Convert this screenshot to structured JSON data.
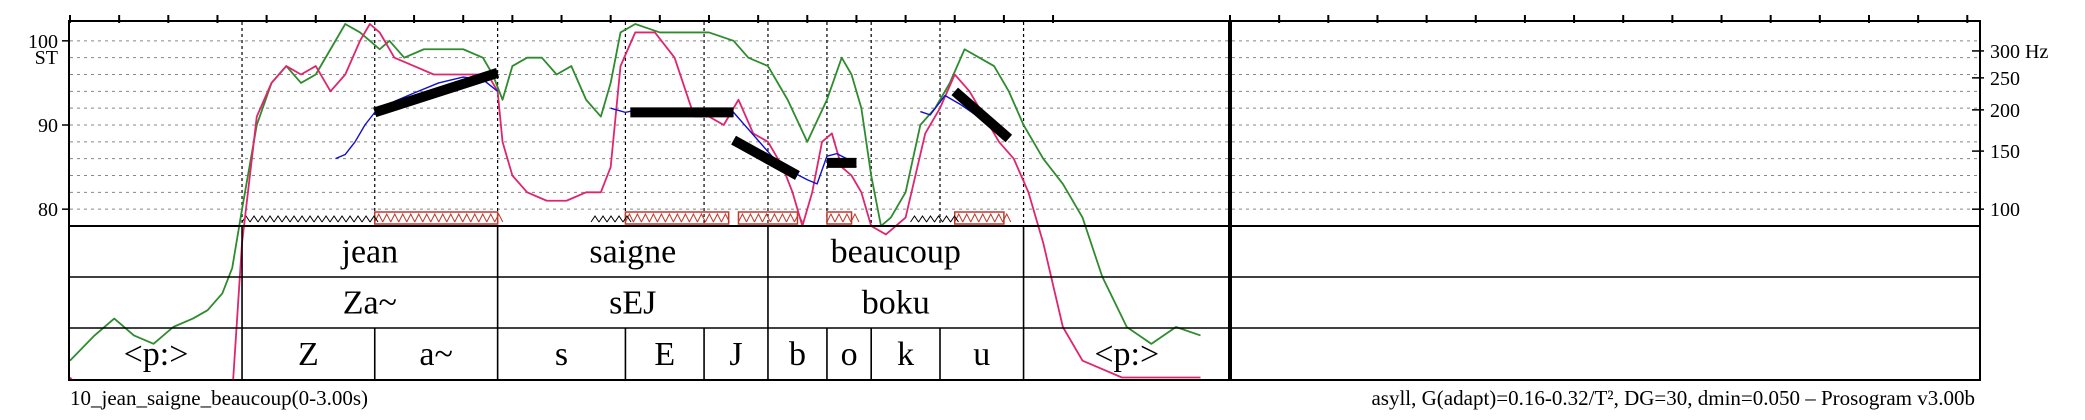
{
  "footer": {
    "filename": "10_jean_saigne_beaucoup(0-3.00s)",
    "settings": "asyll, G(adapt)=0.16-0.32/T², DG=30, dmin=0.050 – Prosogram v3.00b"
  },
  "colors": {
    "intensity": "#2e8b2e",
    "pitch_raw": "#e0256f",
    "pitch_contour": "#1010cc",
    "stylization": "#000000",
    "nucleus": "#c0392b",
    "grid": "#888888"
  },
  "chart_data": {
    "type": "line",
    "title": "",
    "xlim": [
      0,
      3.0
    ],
    "y_left": {
      "label": "ST",
      "ticks": [
        "100",
        "90",
        "80"
      ],
      "values": [
        100,
        90,
        80
      ]
    },
    "y_right": {
      "label": "Hz",
      "ticks": [
        "300 Hz",
        "250",
        "200",
        "150",
        "100"
      ],
      "values": [
        300,
        250,
        200,
        150,
        100
      ]
    },
    "st_range": [
      78,
      102
    ],
    "tiers": [
      {
        "name": "words",
        "intervals": [
          {
            "text": "",
            "start": 0.0,
            "end": 0.35
          },
          {
            "text": "jean",
            "start": 0.35,
            "end": 0.87
          },
          {
            "text": "saigne",
            "start": 0.87,
            "end": 1.42
          },
          {
            "text": "beaucoup",
            "start": 1.42,
            "end": 1.94
          },
          {
            "text": "",
            "start": 1.94,
            "end": 2.36
          }
        ]
      },
      {
        "name": "syllables",
        "intervals": [
          {
            "text": "",
            "start": 0.0,
            "end": 0.35
          },
          {
            "text": "Za~",
            "start": 0.35,
            "end": 0.87
          },
          {
            "text": "sEJ",
            "start": 0.87,
            "end": 1.42
          },
          {
            "text": "boku",
            "start": 1.42,
            "end": 1.94
          },
          {
            "text": "",
            "start": 1.94,
            "end": 2.36
          }
        ]
      },
      {
        "name": "phones",
        "intervals": [
          {
            "text": "<p:>",
            "start": 0.0,
            "end": 0.35
          },
          {
            "text": "Z",
            "start": 0.35,
            "end": 0.62
          },
          {
            "text": "a~",
            "start": 0.62,
            "end": 0.87
          },
          {
            "text": "s",
            "start": 0.87,
            "end": 1.13
          },
          {
            "text": "E",
            "start": 1.13,
            "end": 1.29
          },
          {
            "text": "J",
            "start": 1.29,
            "end": 1.42
          },
          {
            "text": "b",
            "start": 1.42,
            "end": 1.54
          },
          {
            "text": "o",
            "start": 1.54,
            "end": 1.63
          },
          {
            "text": "k",
            "start": 1.63,
            "end": 1.77
          },
          {
            "text": "u",
            "start": 1.77,
            "end": 1.94
          },
          {
            "text": "<p:>",
            "start": 1.94,
            "end": 2.36
          }
        ]
      }
    ],
    "nuclei": [
      {
        "start": 0.62,
        "end": 0.87
      },
      {
        "start": 1.13,
        "end": 1.34
      },
      {
        "start": 1.36,
        "end": 1.48
      },
      {
        "start": 1.54,
        "end": 1.59
      },
      {
        "start": 1.8,
        "end": 1.9
      }
    ],
    "stylization": [
      {
        "t0": 0.62,
        "st0": 91.5,
        "t1": 0.87,
        "st1": 96.2
      },
      {
        "t0": 1.14,
        "st0": 91.5,
        "t1": 1.35,
        "st1": 91.5
      },
      {
        "t0": 1.35,
        "st0": 88.2,
        "t1": 1.48,
        "st1": 84.0
      },
      {
        "t0": 1.54,
        "st0": 85.5,
        "t1": 1.6,
        "st1": 85.5
      },
      {
        "t0": 1.8,
        "st0": 94.0,
        "t1": 1.91,
        "st1": 88.4
      }
    ],
    "series": [
      {
        "name": "intensity",
        "x": [
          0.0,
          0.05,
          0.09,
          0.13,
          0.17,
          0.21,
          0.25,
          0.28,
          0.31,
          0.33,
          0.35,
          0.38,
          0.41,
          0.44,
          0.47,
          0.5,
          0.53,
          0.56,
          0.59,
          0.61,
          0.63,
          0.65,
          0.68,
          0.72,
          0.76,
          0.8,
          0.84,
          0.86,
          0.88,
          0.9,
          0.93,
          0.96,
          0.99,
          1.02,
          1.05,
          1.08,
          1.1,
          1.12,
          1.15,
          1.2,
          1.25,
          1.3,
          1.35,
          1.38,
          1.42,
          1.46,
          1.5,
          1.54,
          1.57,
          1.59,
          1.61,
          1.63,
          1.65,
          1.67,
          1.7,
          1.73,
          1.76,
          1.79,
          1.82,
          1.85,
          1.88,
          1.91,
          1.94,
          1.98,
          2.02,
          2.06,
          2.1,
          2.15,
          2.2,
          2.25,
          2.3
        ],
        "values": [
          62,
          65,
          67,
          65,
          64,
          66,
          67,
          68,
          70,
          73,
          80,
          90,
          95,
          97,
          95,
          96,
          99,
          102,
          101,
          100,
          99,
          100,
          98,
          99,
          99,
          99,
          98,
          96,
          93,
          97,
          98,
          98,
          96,
          97,
          93,
          91,
          95,
          101,
          102,
          101,
          101,
          101,
          100,
          98,
          97,
          93,
          88,
          93,
          98,
          96,
          92,
          84,
          78,
          79,
          82,
          90,
          92,
          95,
          99,
          98,
          97,
          94,
          90,
          86,
          83,
          79,
          72,
          66,
          64,
          66,
          65
        ]
      },
      {
        "name": "pitch_raw",
        "x": [
          0.0,
          0.03,
          0.06,
          0.1,
          0.14,
          0.18,
          0.22,
          0.26,
          0.3,
          0.33,
          0.35,
          0.38,
          0.41,
          0.44,
          0.47,
          0.5,
          0.53,
          0.56,
          0.59,
          0.61,
          0.63,
          0.66,
          0.7,
          0.74,
          0.78,
          0.82,
          0.85,
          0.87,
          0.88,
          0.9,
          0.93,
          0.97,
          1.01,
          1.05,
          1.08,
          1.1,
          1.12,
          1.15,
          1.19,
          1.23,
          1.27,
          1.3,
          1.33,
          1.36,
          1.39,
          1.42,
          1.45,
          1.47,
          1.49,
          1.51,
          1.53,
          1.55,
          1.57,
          1.59,
          1.61,
          1.63,
          1.66,
          1.7,
          1.74,
          1.77,
          1.8,
          1.83,
          1.86,
          1.89,
          1.92,
          1.95,
          1.98,
          2.02,
          2.06,
          2.1,
          2.14,
          2.18,
          2.22,
          2.26,
          2.3
        ],
        "values": [
          60,
          58,
          57,
          58,
          59,
          58,
          58,
          57,
          57,
          58,
          76,
          91,
          95,
          97,
          96,
          97,
          94,
          96,
          100,
          102,
          101,
          98,
          97,
          96,
          96,
          96,
          96,
          94,
          88,
          84,
          82,
          81,
          81,
          82,
          82,
          85,
          97,
          101,
          101,
          98,
          91,
          91,
          90,
          93,
          89,
          88,
          85,
          82,
          78,
          82,
          88,
          89,
          85,
          84,
          82,
          78,
          77,
          79,
          89,
          92,
          96,
          94,
          91,
          88,
          86,
          82,
          76,
          66,
          62,
          61,
          60,
          60,
          60,
          60,
          60
        ]
      },
      {
        "name": "pitch_contour",
        "x": [
          0.54,
          0.56,
          0.58,
          0.6,
          0.62,
          0.66,
          0.7,
          0.75,
          0.8,
          0.84,
          0.87,
          1.1,
          1.13,
          1.17,
          1.22,
          1.27,
          1.31,
          1.35,
          1.38,
          1.41,
          1.44,
          1.47,
          1.5,
          1.52,
          1.54,
          1.56,
          1.58,
          1.6,
          1.73,
          1.75,
          1.78,
          1.81,
          1.84,
          1.87,
          1.9
        ],
        "values": [
          86,
          86.5,
          88,
          90,
          91.5,
          92.8,
          93.8,
          95,
          95.7,
          95.4,
          94,
          92,
          91.5,
          92,
          92,
          91.8,
          91.8,
          91.5,
          89.5,
          87.5,
          85.5,
          84.4,
          83.5,
          83,
          86.3,
          86.6,
          86,
          85,
          91.6,
          91.2,
          93.5,
          92.5,
          91.3,
          90,
          88.4
        ]
      }
    ]
  }
}
